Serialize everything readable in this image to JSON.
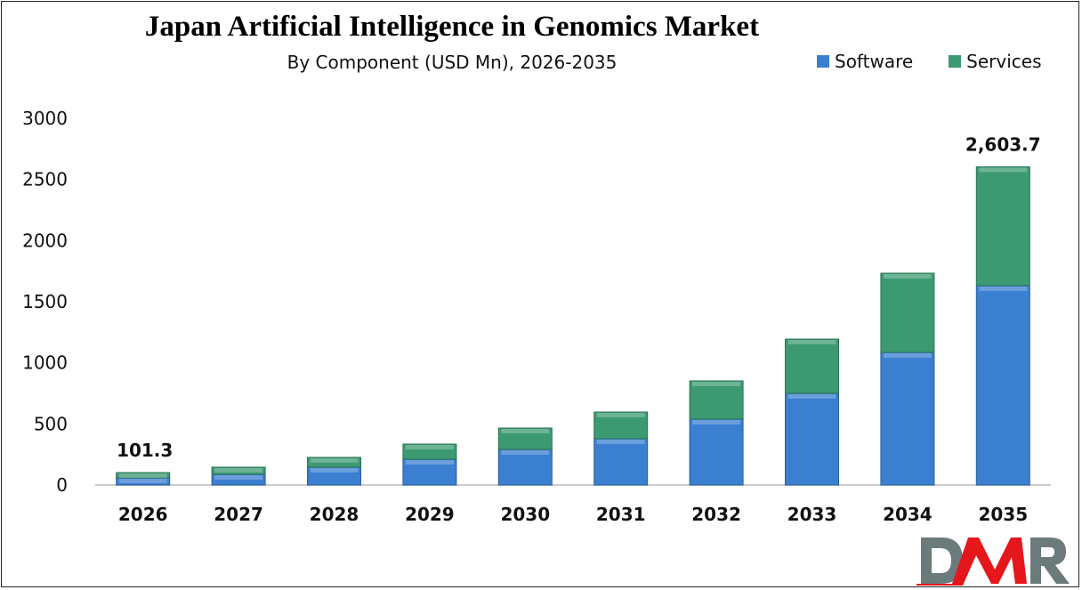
{
  "chart_data": {
    "type": "bar",
    "stacked": true,
    "title": "Japan Artificial Intelligence in Genomics Market",
    "subtitle": "By Component (USD Mn), 2026-2035",
    "categories": [
      "2026",
      "2027",
      "2028",
      "2029",
      "2030",
      "2031",
      "2032",
      "2033",
      "2034",
      "2035"
    ],
    "series": [
      {
        "name": "Software",
        "color": "#3a7fd0",
        "values": [
          58,
          87,
          146,
          211,
          291,
          379,
          539,
          750,
          1085,
          1631
        ]
      },
      {
        "name": "Services",
        "color": "#3c9a72",
        "values": [
          43.3,
          59,
          80,
          124,
          175,
          218,
          313,
          444,
          648,
          972.7
        ]
      }
    ],
    "data_labels": [
      {
        "category": "2026",
        "text": "101.3"
      },
      {
        "category": "2035",
        "text": "2,603.7"
      }
    ],
    "yticks": [
      "0",
      "500",
      "1000",
      "1500",
      "2000",
      "2500",
      "3000"
    ],
    "ylim": [
      0,
      3000
    ],
    "grid": false,
    "legend_position": "top-right",
    "logo_text": "DMR"
  }
}
